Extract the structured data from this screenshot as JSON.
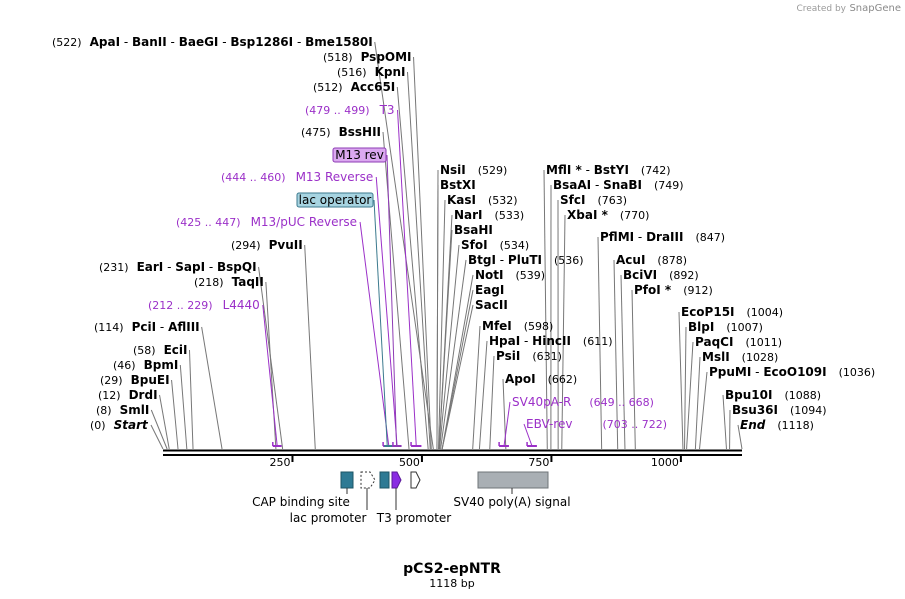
{
  "credit": {
    "created_by": "Created by",
    "brand": "SnapGene"
  },
  "plasmid": {
    "name": "pCS2-epNTR",
    "length": "1118 bp"
  },
  "ruler_ticks": [
    "250",
    "500",
    "750",
    "1000"
  ],
  "enzymes": [
    {
      "id": "e0",
      "site": 0,
      "pos": "(0)",
      "names": [
        {
          "t": "Start",
          "i": true
        }
      ]
    },
    {
      "id": "e8",
      "site": 8,
      "pos": "(8)",
      "names": [
        {
          "t": "SmlI"
        }
      ]
    },
    {
      "id": "e12",
      "site": 12,
      "pos": "(12)",
      "names": [
        {
          "t": "DrdI"
        }
      ]
    },
    {
      "id": "e29",
      "site": 29,
      "pos": "(29)",
      "names": [
        {
          "t": "BpuEI"
        }
      ]
    },
    {
      "id": "e46",
      "site": 46,
      "pos": "(46)",
      "names": [
        {
          "t": "BpmI"
        }
      ]
    },
    {
      "id": "e58",
      "site": 58,
      "pos": "(58)",
      "names": [
        {
          "t": "EciI"
        }
      ]
    },
    {
      "id": "e114",
      "site": 114,
      "pos": "(114)",
      "names": [
        {
          "t": "PciI"
        },
        {
          "t": "AflIII"
        }
      ]
    },
    {
      "id": "e218",
      "site": 218,
      "pos": "(218)",
      "names": [
        {
          "t": "TaqII"
        }
      ]
    },
    {
      "id": "e231",
      "site": 231,
      "pos": "(231)",
      "names": [
        {
          "t": "EarI"
        },
        {
          "t": "SapI"
        },
        {
          "t": "BspQI"
        }
      ]
    },
    {
      "id": "e294",
      "site": 294,
      "pos": "(294)",
      "names": [
        {
          "t": "PvuII"
        }
      ]
    },
    {
      "id": "e475",
      "site": 475,
      "pos": "(475)",
      "names": [
        {
          "t": "BssHII"
        }
      ]
    },
    {
      "id": "e512",
      "site": 512,
      "pos": "(512)",
      "names": [
        {
          "t": "Acc65I"
        }
      ]
    },
    {
      "id": "e516",
      "site": 516,
      "pos": "(516)",
      "names": [
        {
          "t": "KpnI"
        }
      ]
    },
    {
      "id": "e518",
      "site": 518,
      "pos": "(518)",
      "names": [
        {
          "t": "PspOMI"
        }
      ]
    },
    {
      "id": "e522",
      "site": 522,
      "pos": "(522)",
      "names": [
        {
          "t": "ApaI"
        },
        {
          "t": "BanII"
        },
        {
          "t": "BaeGI"
        },
        {
          "t": "Bsp1286I"
        },
        {
          "t": "Bme1580I"
        }
      ]
    },
    {
      "id": "e529",
      "site": 529,
      "pos": "(529)",
      "names": [
        {
          "t": "NsiI"
        }
      ]
    },
    {
      "id": "e529b",
      "site": 529,
      "pos": "",
      "names": [
        {
          "t": "BstXI"
        }
      ]
    },
    {
      "id": "e532",
      "site": 532,
      "pos": "(532)",
      "names": [
        {
          "t": "KasI"
        }
      ]
    },
    {
      "id": "e533",
      "site": 533,
      "pos": "(533)",
      "names": [
        {
          "t": "NarI"
        }
      ]
    },
    {
      "id": "e533b",
      "site": 533,
      "pos": "",
      "names": [
        {
          "t": "BsaHI"
        }
      ]
    },
    {
      "id": "e534",
      "site": 534,
      "pos": "(534)",
      "names": [
        {
          "t": "SfoI"
        }
      ]
    },
    {
      "id": "e536",
      "site": 536,
      "pos": "(536)",
      "names": [
        {
          "t": "BtgI"
        },
        {
          "t": "PluTI"
        }
      ]
    },
    {
      "id": "e539",
      "site": 539,
      "pos": "(539)",
      "names": [
        {
          "t": "NotI"
        }
      ]
    },
    {
      "id": "e539b",
      "site": 539,
      "pos": "",
      "names": [
        {
          "t": "EagI"
        }
      ]
    },
    {
      "id": "e539c",
      "site": 539,
      "pos": "",
      "names": [
        {
          "t": "SacII"
        }
      ]
    },
    {
      "id": "e598",
      "site": 598,
      "pos": "(598)",
      "names": [
        {
          "t": "MfeI"
        }
      ]
    },
    {
      "id": "e611",
      "site": 611,
      "pos": "(611)",
      "names": [
        {
          "t": "HpaI"
        },
        {
          "t": "HincII"
        }
      ]
    },
    {
      "id": "e631",
      "site": 631,
      "pos": "(631)",
      "names": [
        {
          "t": "PsiI"
        }
      ]
    },
    {
      "id": "e662",
      "site": 662,
      "pos": "(662)",
      "names": [
        {
          "t": "ApoI"
        }
      ]
    },
    {
      "id": "e742",
      "site": 742,
      "pos": "(742)",
      "names": [
        {
          "t": "MflI *"
        },
        {
          "t": "BstYI"
        }
      ]
    },
    {
      "id": "e749",
      "site": 749,
      "pos": "(749)",
      "names": [
        {
          "t": "BsaAI"
        },
        {
          "t": "SnaBI"
        }
      ]
    },
    {
      "id": "e763",
      "site": 763,
      "pos": "(763)",
      "names": [
        {
          "t": "SfcI"
        }
      ]
    },
    {
      "id": "e770",
      "site": 770,
      "pos": "(770)",
      "names": [
        {
          "t": "XbaI *"
        }
      ]
    },
    {
      "id": "e847",
      "site": 847,
      "pos": "(847)",
      "names": [
        {
          "t": "PflMI"
        },
        {
          "t": "DraIII"
        }
      ]
    },
    {
      "id": "e878",
      "site": 878,
      "pos": "(878)",
      "names": [
        {
          "t": "AcuI"
        }
      ]
    },
    {
      "id": "e892",
      "site": 892,
      "pos": "(892)",
      "names": [
        {
          "t": "BciVI"
        }
      ]
    },
    {
      "id": "e912",
      "site": 912,
      "pos": "(912)",
      "names": [
        {
          "t": "PfoI *"
        }
      ]
    },
    {
      "id": "e1004",
      "site": 1004,
      "pos": "(1004)",
      "names": [
        {
          "t": "EcoP15I"
        }
      ]
    },
    {
      "id": "e1007",
      "site": 1007,
      "pos": "(1007)",
      "names": [
        {
          "t": "BlpI"
        }
      ]
    },
    {
      "id": "e1011",
      "site": 1011,
      "pos": "(1011)",
      "names": [
        {
          "t": "PaqCI"
        }
      ]
    },
    {
      "id": "e1028",
      "site": 1028,
      "pos": "(1028)",
      "names": [
        {
          "t": "MslI"
        }
      ]
    },
    {
      "id": "e1036",
      "site": 1036,
      "pos": "(1036)",
      "names": [
        {
          "t": "PpuMI"
        },
        {
          "t": "EcoO109I"
        }
      ]
    },
    {
      "id": "e1088",
      "site": 1088,
      "pos": "(1088)",
      "names": [
        {
          "t": "Bpu10I"
        }
      ]
    },
    {
      "id": "e1094",
      "site": 1094,
      "pos": "(1094)",
      "names": [
        {
          "t": "Bsu36I"
        }
      ]
    },
    {
      "id": "e1118",
      "site": 1118,
      "pos": "(1118)",
      "names": [
        {
          "t": "End",
          "i": true
        }
      ]
    }
  ],
  "primers": [
    {
      "id": "p_t3",
      "name": "T3",
      "range": "(479 .. 499)",
      "start": 479,
      "end": 499
    },
    {
      "id": "p_m13rev",
      "name": "M13 Reverse",
      "range": "(444 .. 460)",
      "start": 444,
      "end": 460
    },
    {
      "id": "p_m13puc",
      "name": "M13/pUC Reverse",
      "range": "(425 .. 447)",
      "start": 425,
      "end": 447
    },
    {
      "id": "p_l4440",
      "name": "L4440",
      "range": "(212 .. 229)",
      "start": 212,
      "end": 229
    },
    {
      "id": "p_sv40pa",
      "name": "SV40pA-R",
      "range": "(649 .. 668)",
      "start": 649,
      "end": 668
    },
    {
      "id": "p_ebv",
      "name": "EBV-rev",
      "range": "(703 .. 722)",
      "start": 703,
      "end": 722
    }
  ],
  "boxed_labels": [
    {
      "id": "b_m13rev",
      "text": "M13 rev",
      "fill": "#dba8f0",
      "stroke": "#8e3cb5",
      "site": 451
    },
    {
      "id": "b_lacop",
      "text": "lac operator",
      "fill": "#a7d4e1",
      "stroke": "#3c7a8e",
      "site": 433
    }
  ],
  "features": [
    {
      "id": "f_cap",
      "label": "CAP binding site"
    },
    {
      "id": "f_lacprom",
      "label": "lac promoter"
    },
    {
      "id": "f_t3prom",
      "label": "T3 promoter"
    },
    {
      "id": "f_sv40",
      "label": "SV40 poly(A) signal"
    }
  ],
  "colors": {
    "primer": "#9b30c8",
    "feature_teal": "#2e7a94",
    "feature_purple": "#8a2be2",
    "feature_gray": "#a9afb4",
    "line": "#777777"
  }
}
